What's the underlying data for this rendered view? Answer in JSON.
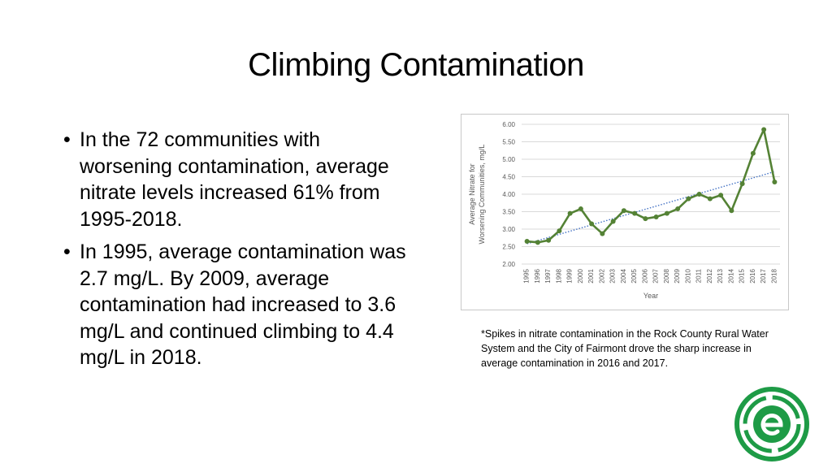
{
  "slide": {
    "title": "Climbing Contamination",
    "bullets": [
      "In the 72 communities with worsening contamination, average nitrate levels increased 61% from 1995-2018.",
      "In 1995, average contamination was 2.7 mg/L. By 2009, average contamination had increased to 3.6 mg/L and continued climbing to 4.4 mg/L in 2018."
    ],
    "bullet_marker": "•",
    "footnote": "*Spikes in nitrate contamination in the Rock County Rural Water System and the City of Fairmont drove the sharp increase in average contamination in 2016 and 2017.",
    "logo_icon": "green-e-logo-icon"
  },
  "colors": {
    "line": "#548235",
    "trend": "#4472c4",
    "grid": "#d9d9d9",
    "tick_text": "#595959",
    "logo": "#1e9b46"
  },
  "chart_data": {
    "type": "line",
    "xlabel": "Year",
    "ylabel": "Average Nitrate for Worsening Communities, mg/L",
    "ylim": [
      2.0,
      6.0
    ],
    "yticks": [
      "2.00",
      "2.50",
      "3.00",
      "3.50",
      "4.00",
      "4.50",
      "5.00",
      "5.50",
      "6.00"
    ],
    "grid": true,
    "trendline": "linear",
    "x": [
      "1995",
      "1996",
      "1997",
      "1998",
      "1999",
      "2000",
      "2001",
      "2002",
      "2003",
      "2004",
      "2005",
      "2006",
      "2007",
      "2008",
      "2009",
      "2010",
      "2011",
      "2012",
      "2013",
      "2014",
      "2015",
      "2016",
      "2017",
      "2018"
    ],
    "values": [
      2.65,
      2.62,
      2.68,
      2.95,
      3.45,
      3.58,
      3.15,
      2.87,
      3.22,
      3.53,
      3.45,
      3.3,
      3.35,
      3.45,
      3.58,
      3.87,
      4.0,
      3.87,
      3.97,
      3.53,
      4.3,
      5.17,
      5.85,
      4.35
    ]
  }
}
